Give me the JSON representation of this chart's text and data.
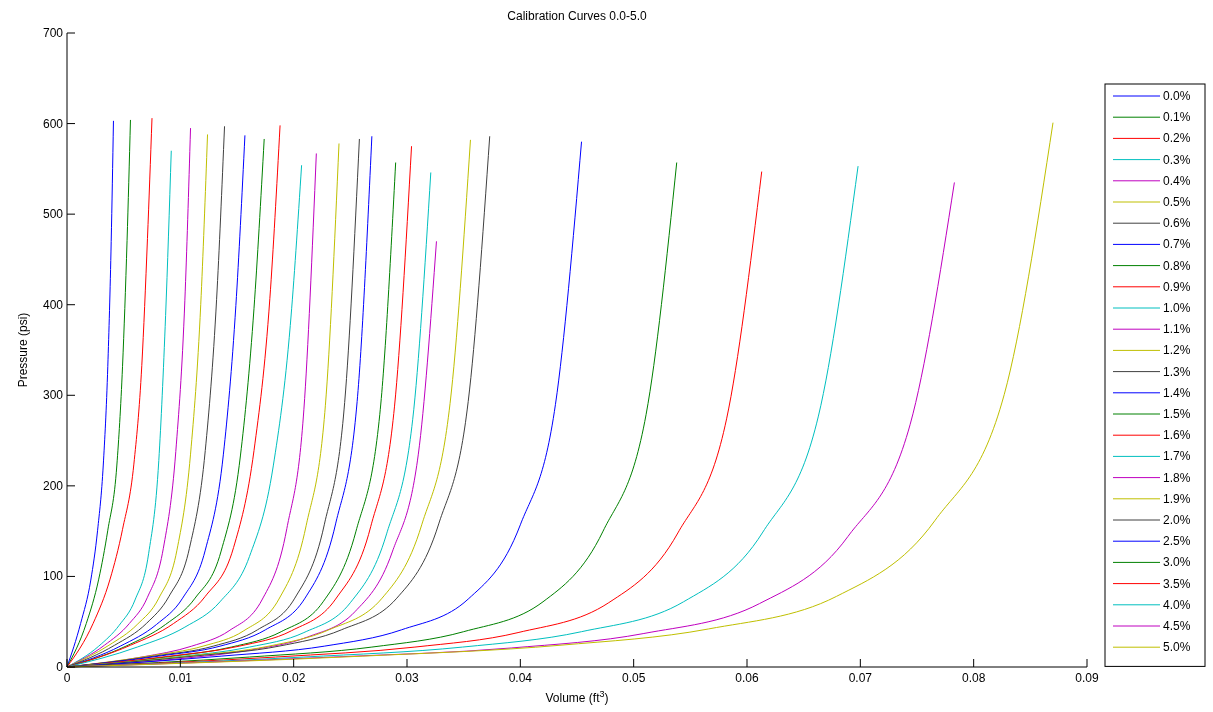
{
  "chart_data": {
    "type": "line",
    "title": "Calibration Curves 0.0-5.0",
    "xlabel": "Volume (ft$^{3}$)",
    "ylabel": "Pressure (psi)",
    "xlim": [
      0,
      0.09
    ],
    "xticks": [
      0,
      0.01,
      0.02,
      0.03,
      0.04,
      0.05,
      0.06,
      0.07,
      0.08,
      0.09
    ],
    "ylim": [
      0,
      700
    ],
    "yticks": [
      0,
      100,
      200,
      300,
      400,
      500,
      600,
      700
    ],
    "grid": false,
    "legend": "right",
    "marker": "none",
    "line_style": "solid",
    "series": [
      {
        "name": "0.0%",
        "color": "#0000ff",
        "x": [
          0,
          0.0012,
          0.0021,
          0.0027,
          0.0032,
          0.0036,
          0.0039,
          0.0041
        ],
        "values": [
          0,
          48,
          96,
          151,
          223,
          332,
          470,
          603
        ]
      },
      {
        "name": "0.1%",
        "color": "#008000",
        "x": [
          0,
          0.0017,
          0.0028,
          0.0036,
          0.0044,
          0.0049,
          0.0053,
          0.0056
        ],
        "values": [
          0,
          48,
          97,
          151,
          223,
          332,
          471,
          604
        ]
      },
      {
        "name": "0.2%",
        "color": "#ff0000",
        "x": [
          0,
          0.0023,
          0.0038,
          0.0049,
          0.0059,
          0.0066,
          0.0071,
          0.0075
        ],
        "values": [
          0,
          48,
          97,
          152,
          224,
          333,
          473,
          606
        ]
      },
      {
        "name": "0.3%",
        "color": "#00bfbf",
        "x": [
          0,
          0.0028,
          0.0046,
          0.006,
          0.0072,
          0.0081,
          0.0087,
          0.0092
        ],
        "values": [
          0,
          23,
          46,
          74,
          125,
          228,
          388,
          570
        ]
      },
      {
        "name": "0.4%",
        "color": "#bf00bf",
        "x": [
          0,
          0.0033,
          0.0055,
          0.0071,
          0.0085,
          0.0096,
          0.0104,
          0.0109
        ],
        "values": [
          0,
          24,
          48,
          77,
          131,
          238,
          405,
          595
        ]
      },
      {
        "name": "0.5%",
        "color": "#bfbf00",
        "x": [
          0,
          0.0037,
          0.0062,
          0.0081,
          0.0097,
          0.0109,
          0.0118,
          0.0124
        ],
        "values": [
          0,
          24,
          47,
          76,
          129,
          235,
          400,
          588
        ]
      },
      {
        "name": "0.6%",
        "color": "#404040",
        "x": [
          0,
          0.0042,
          0.007,
          0.009,
          0.0108,
          0.0122,
          0.0132,
          0.0139
        ],
        "values": [
          0,
          24,
          48,
          78,
          131,
          239,
          406,
          597
        ]
      },
      {
        "name": "0.7%",
        "color": "#0000ff",
        "x": [
          0,
          0.0047,
          0.0079,
          0.0102,
          0.0122,
          0.0138,
          0.0149,
          0.0157
        ],
        "values": [
          0,
          23,
          47,
          76,
          129,
          235,
          399,
          587
        ]
      },
      {
        "name": "0.8%",
        "color": "#008000",
        "x": [
          0,
          0.0052,
          0.0087,
          0.0113,
          0.0136,
          0.0153,
          0.0165,
          0.0174
        ],
        "values": [
          0,
          23,
          47,
          76,
          128,
          233,
          396,
          583
        ]
      },
      {
        "name": "0.9%",
        "color": "#ff0000",
        "x": [
          0,
          0.0056,
          0.0094,
          0.0122,
          0.0147,
          0.0165,
          0.0179,
          0.0188
        ],
        "values": [
          0,
          24,
          48,
          78,
          132,
          239,
          407,
          598
        ]
      },
      {
        "name": "1.0%",
        "color": "#00bfbf",
        "x": [
          0,
          0.0062,
          0.0104,
          0.0135,
          0.0161,
          0.0182,
          0.0197,
          0.0207
        ],
        "values": [
          0,
          22,
          44,
          72,
          122,
          222,
          377,
          554
        ]
      },
      {
        "name": "1.1%",
        "color": "#bf00bf",
        "x": [
          0,
          0.0066,
          0.011,
          0.0143,
          0.0172,
          0.0194,
          0.0209,
          0.022
        ],
        "values": [
          0,
          11,
          23,
          40,
          74,
          153,
          284,
          567
        ]
      },
      {
        "name": "1.2%",
        "color": "#bfbf00",
        "x": [
          0,
          0.0072,
          0.012,
          0.0156,
          0.0187,
          0.0211,
          0.0228,
          0.024
        ],
        "values": [
          0,
          12,
          23,
          40,
          75,
          156,
          289,
          578
        ]
      },
      {
        "name": "1.3%",
        "color": "#404040",
        "x": [
          0,
          0.0077,
          0.0129,
          0.0168,
          0.0201,
          0.0227,
          0.0245,
          0.0258
        ],
        "values": [
          0,
          12,
          23,
          41,
          76,
          157,
          292,
          583
        ]
      },
      {
        "name": "1.4%",
        "color": "#0000ff",
        "x": [
          0,
          0.0081,
          0.0135,
          0.0175,
          0.021,
          0.0237,
          0.0256,
          0.0269
        ],
        "values": [
          0,
          12,
          23,
          41,
          76,
          158,
          293,
          586
        ]
      },
      {
        "name": "1.5%",
        "color": "#008000",
        "x": [
          0,
          0.0087,
          0.0145,
          0.0189,
          0.0226,
          0.0255,
          0.0276,
          0.029
        ],
        "values": [
          0,
          11,
          22,
          39,
          72,
          150,
          279,
          557
        ]
      },
      {
        "name": "1.6%",
        "color": "#ff0000",
        "x": [
          0,
          0.0091,
          0.0152,
          0.0198,
          0.0237,
          0.0268,
          0.0289,
          0.0304
        ],
        "values": [
          0,
          12,
          23,
          40,
          75,
          155,
          288,
          575
        ]
      },
      {
        "name": "1.7%",
        "color": "#00bfbf",
        "x": [
          0,
          0.0096,
          0.0161,
          0.0209,
          0.025,
          0.0282,
          0.0305,
          0.0321
        ],
        "values": [
          0,
          11,
          22,
          38,
          71,
          147,
          273,
          546
        ]
      },
      {
        "name": "1.8%",
        "color": "#bf00bf",
        "x": [
          0,
          0.0098,
          0.0163,
          0.0212,
          0.0254,
          0.0287,
          0.031,
          0.0326
        ],
        "values": [
          0,
          9,
          19,
          33,
          61,
          127,
          235,
          470
        ]
      },
      {
        "name": "1.9%",
        "color": "#bfbf00",
        "x": [
          0,
          0.0107,
          0.0178,
          0.0231,
          0.0278,
          0.0313,
          0.0338,
          0.0356
        ],
        "values": [
          0,
          12,
          23,
          41,
          76,
          157,
          291,
          582
        ]
      },
      {
        "name": "2.0%",
        "color": "#404040",
        "x": [
          0,
          0.0112,
          0.0187,
          0.0242,
          0.0291,
          0.0328,
          0.0354,
          0.0373
        ],
        "values": [
          0,
          12,
          23,
          41,
          76,
          158,
          293,
          586
        ]
      },
      {
        "name": "2.5%",
        "color": "#0000ff",
        "x": [
          0,
          0.0136,
          0.0227,
          0.0295,
          0.0354,
          0.04,
          0.0431,
          0.0454
        ],
        "values": [
          0,
          12,
          23,
          41,
          75,
          157,
          290,
          580
        ]
      },
      {
        "name": "3.0%",
        "color": "#008000",
        "x": [
          0,
          0.0161,
          0.0269,
          0.035,
          0.042,
          0.0473,
          0.0511,
          0.0538
        ],
        "values": [
          0,
          11,
          22,
          39,
          72,
          150,
          279,
          557
        ]
      },
      {
        "name": "3.5%",
        "color": "#ff0000",
        "x": [
          0,
          0.0184,
          0.0307,
          0.0398,
          0.0478,
          0.0539,
          0.0582,
          0.0613
        ],
        "values": [
          0,
          11,
          22,
          38,
          71,
          148,
          274,
          547
        ]
      },
      {
        "name": "4.0%",
        "color": "#00bfbf",
        "x": [
          0,
          0.0209,
          0.0349,
          0.0454,
          0.0544,
          0.0614,
          0.0663,
          0.0698
        ],
        "values": [
          0,
          11,
          22,
          39,
          72,
          149,
          277,
          553
        ]
      },
      {
        "name": "4.5%",
        "color": "#bf00bf",
        "x": [
          0,
          0.0235,
          0.0392,
          0.0509,
          0.0611,
          0.0689,
          0.0744,
          0.0783
        ],
        "values": [
          0,
          11,
          21,
          37,
          70,
          144,
          268,
          535
        ]
      },
      {
        "name": "5.0%",
        "color": "#bfbf00",
        "x": [
          0,
          0.0261,
          0.0435,
          0.0566,
          0.0679,
          0.0766,
          0.0827,
          0.087
        ],
        "values": [
          0,
          12,
          24,
          42,
          78,
          162,
          301,
          601
        ]
      }
    ]
  }
}
